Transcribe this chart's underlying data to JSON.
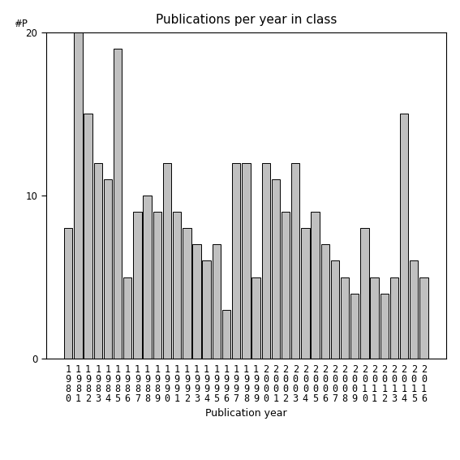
{
  "title": "Publications per year in class",
  "xlabel": "Publication year",
  "ylabel_text": "#P",
  "years": [
    1980,
    1981,
    1982,
    1983,
    1984,
    1985,
    1986,
    1987,
    1988,
    1989,
    1990,
    1991,
    1992,
    1993,
    1994,
    1995,
    1996,
    1997,
    1998,
    1999,
    2000,
    2001,
    2002,
    2003,
    2004,
    2005,
    2006,
    2007,
    2008,
    2009,
    2010,
    2011,
    2012,
    2013,
    2014,
    2015,
    2016
  ],
  "values": [
    8,
    20,
    15,
    12,
    11,
    19,
    5,
    9,
    10,
    9,
    12,
    9,
    8,
    7,
    6,
    7,
    3,
    12,
    12,
    5,
    12,
    11,
    9,
    12,
    8,
    9,
    7,
    6,
    5,
    4,
    8,
    5,
    4,
    5,
    15,
    6,
    5
  ],
  "bar_color": "#c0c0c0",
  "bar_edge_color": "#000000",
  "ylim": [
    0,
    20
  ],
  "yticks": [
    0,
    10,
    20
  ],
  "background_color": "#ffffff",
  "figsize": [
    5.67,
    5.67
  ],
  "dpi": 100,
  "title_fontsize": 11,
  "axis_fontsize": 9,
  "tick_fontsize": 8.5
}
